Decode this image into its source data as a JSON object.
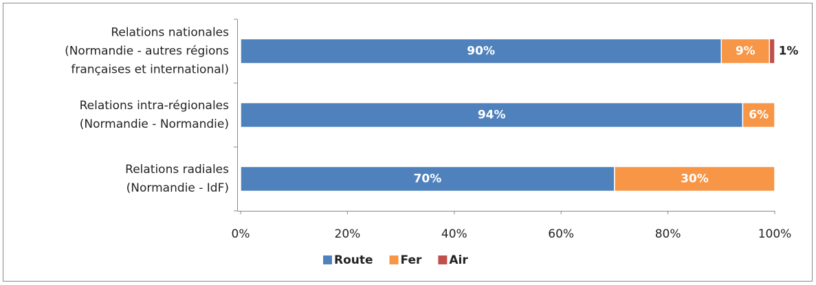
{
  "chart_data": {
    "type": "stacked_bar_horizontal",
    "categories": [
      [
        "Relations nationales",
        "(Normandie - autres régions",
        "françaises et international)"
      ],
      [
        "Relations intra-régionales",
        "(Normandie - Normandie)"
      ],
      [
        "Relations radiales",
        "(Normandie - IdF)"
      ]
    ],
    "series": [
      {
        "name": "Route",
        "color": "#4f81bd",
        "values": [
          90,
          94,
          70
        ],
        "value_labels": [
          "90%",
          "94%",
          "70%"
        ]
      },
      {
        "name": "Fer",
        "color": "#f79646",
        "values": [
          9,
          6,
          30
        ],
        "value_labels": [
          "9%",
          "6%",
          "30%"
        ]
      },
      {
        "name": "Air",
        "color": "#c0504d",
        "values": [
          1,
          null,
          null
        ],
        "value_labels": [
          "1%",
          null,
          null
        ]
      }
    ],
    "xlim": [
      0,
      100
    ],
    "xticks": [
      {
        "value": 0,
        "label": "0%"
      },
      {
        "value": 20,
        "label": "20%"
      },
      {
        "value": 40,
        "label": "40%"
      },
      {
        "value": 60,
        "label": "60%"
      },
      {
        "value": 80,
        "label": "80%"
      },
      {
        "value": 100,
        "label": "100%"
      }
    ],
    "legend": "bottom"
  }
}
